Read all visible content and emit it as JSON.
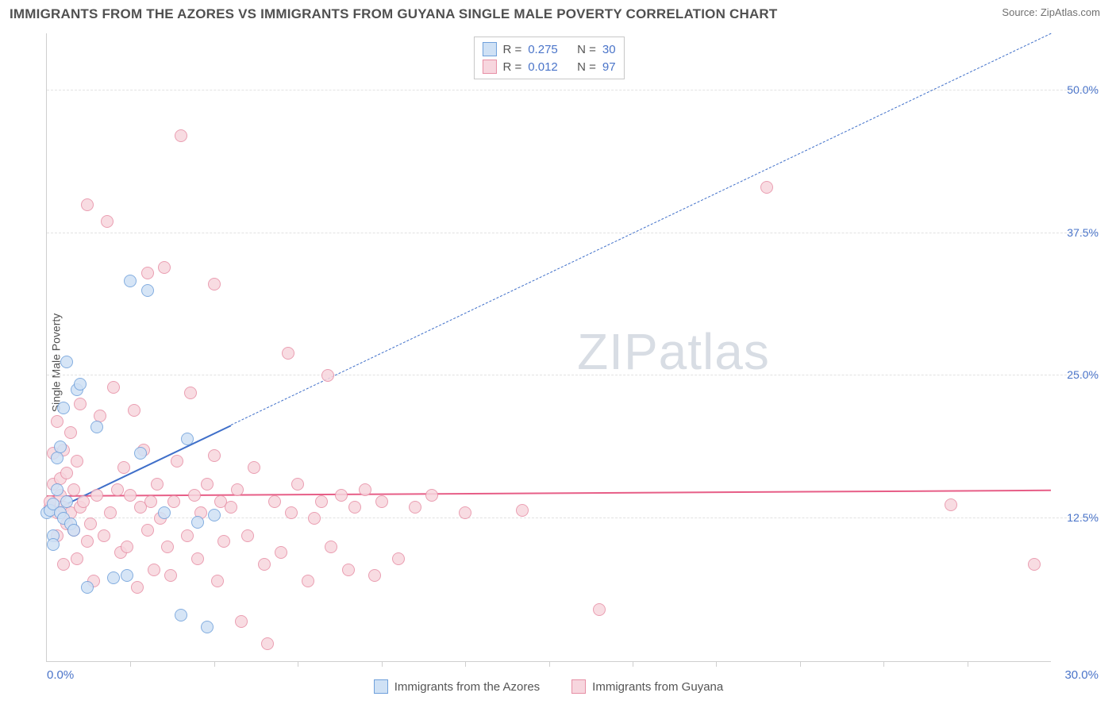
{
  "header": {
    "title": "IMMIGRANTS FROM THE AZORES VS IMMIGRANTS FROM GUYANA SINGLE MALE POVERTY CORRELATION CHART",
    "source_label": "Source:",
    "source_value": "ZipAtlas.com"
  },
  "axes": {
    "ylabel": "Single Male Poverty",
    "xmin_label": "0.0%",
    "xmax_label": "30.0%",
    "xlim": [
      0,
      30
    ],
    "ylim": [
      0,
      55
    ],
    "yticks": [
      {
        "v": 12.5,
        "label": "12.5%"
      },
      {
        "v": 25.0,
        "label": "25.0%"
      },
      {
        "v": 37.5,
        "label": "37.5%"
      },
      {
        "v": 50.0,
        "label": "50.0%"
      }
    ],
    "xticks_minor": [
      2.5,
      5,
      7.5,
      10,
      12.5,
      15,
      17.5,
      20,
      22.5,
      25,
      27.5
    ],
    "grid_color": "#e2e2e2",
    "axis_color": "#cfcfcf",
    "tick_label_color": "#4a74c9"
  },
  "series": {
    "azores": {
      "label": "Immigrants from the Azores",
      "marker_fill": "#cfe1f5",
      "marker_stroke": "#6fa0db",
      "line_color": "#3f6fc9",
      "R": "0.275",
      "N": "30",
      "points": [
        [
          0.0,
          13.0
        ],
        [
          0.1,
          13.2
        ],
        [
          0.2,
          13.8
        ],
        [
          0.2,
          11.0
        ],
        [
          0.2,
          10.2
        ],
        [
          0.3,
          17.8
        ],
        [
          0.3,
          15.0
        ],
        [
          0.4,
          13.0
        ],
        [
          0.4,
          18.8
        ],
        [
          0.5,
          12.5
        ],
        [
          0.5,
          22.2
        ],
        [
          0.6,
          14.0
        ],
        [
          0.6,
          26.2
        ],
        [
          0.7,
          12.0
        ],
        [
          0.8,
          11.5
        ],
        [
          0.9,
          23.8
        ],
        [
          1.0,
          24.3
        ],
        [
          1.2,
          6.5
        ],
        [
          1.5,
          20.5
        ],
        [
          2.0,
          7.3
        ],
        [
          2.4,
          7.5
        ],
        [
          2.5,
          33.3
        ],
        [
          2.8,
          18.2
        ],
        [
          3.0,
          32.5
        ],
        [
          3.5,
          13.0
        ],
        [
          4.0,
          4.0
        ],
        [
          4.2,
          19.5
        ],
        [
          4.5,
          12.2
        ],
        [
          4.8,
          3.0
        ],
        [
          5.0,
          12.8
        ]
      ],
      "trend": {
        "x1": 0.0,
        "y1": 13.0,
        "x2": 30.0,
        "y2": 55.0
      },
      "trend_solid_until_x": 5.5
    },
    "guyana": {
      "label": "Immigrants from Guyana",
      "marker_fill": "#f7d6de",
      "marker_stroke": "#e78fa5",
      "line_color": "#e75e87",
      "R": "0.012",
      "N": "97",
      "points": [
        [
          0.1,
          13.5
        ],
        [
          0.1,
          14.0
        ],
        [
          0.2,
          15.5
        ],
        [
          0.2,
          18.2
        ],
        [
          0.3,
          13.0
        ],
        [
          0.3,
          21.0
        ],
        [
          0.3,
          11.0
        ],
        [
          0.4,
          14.5
        ],
        [
          0.4,
          16.0
        ],
        [
          0.5,
          13.5
        ],
        [
          0.5,
          18.5
        ],
        [
          0.5,
          8.5
        ],
        [
          0.6,
          12.0
        ],
        [
          0.6,
          16.5
        ],
        [
          0.7,
          20.0
        ],
        [
          0.7,
          13.0
        ],
        [
          0.8,
          11.5
        ],
        [
          0.8,
          15.0
        ],
        [
          0.9,
          9.0
        ],
        [
          0.9,
          17.5
        ],
        [
          1.0,
          13.5
        ],
        [
          1.0,
          22.5
        ],
        [
          1.1,
          14.0
        ],
        [
          1.2,
          10.5
        ],
        [
          1.2,
          40.0
        ],
        [
          1.3,
          12.0
        ],
        [
          1.4,
          7.0
        ],
        [
          1.5,
          14.5
        ],
        [
          1.6,
          21.5
        ],
        [
          1.7,
          11.0
        ],
        [
          1.8,
          38.5
        ],
        [
          1.9,
          13.0
        ],
        [
          2.0,
          24.0
        ],
        [
          2.1,
          15.0
        ],
        [
          2.2,
          9.5
        ],
        [
          2.3,
          17.0
        ],
        [
          2.4,
          10.0
        ],
        [
          2.5,
          14.5
        ],
        [
          2.6,
          22.0
        ],
        [
          2.7,
          6.5
        ],
        [
          2.8,
          13.5
        ],
        [
          2.9,
          18.5
        ],
        [
          3.0,
          11.5
        ],
        [
          3.0,
          34.0
        ],
        [
          3.1,
          14.0
        ],
        [
          3.2,
          8.0
        ],
        [
          3.3,
          15.5
        ],
        [
          3.4,
          12.5
        ],
        [
          3.5,
          34.5
        ],
        [
          3.6,
          10.0
        ],
        [
          3.7,
          7.5
        ],
        [
          3.8,
          14.0
        ],
        [
          3.9,
          17.5
        ],
        [
          4.0,
          46.0
        ],
        [
          4.2,
          11.0
        ],
        [
          4.3,
          23.5
        ],
        [
          4.4,
          14.5
        ],
        [
          4.5,
          9.0
        ],
        [
          4.6,
          13.0
        ],
        [
          4.8,
          15.5
        ],
        [
          5.0,
          18.0
        ],
        [
          5.0,
          33.0
        ],
        [
          5.1,
          7.0
        ],
        [
          5.2,
          14.0
        ],
        [
          5.3,
          10.5
        ],
        [
          5.5,
          13.5
        ],
        [
          5.7,
          15.0
        ],
        [
          5.8,
          3.5
        ],
        [
          6.0,
          11.0
        ],
        [
          6.2,
          17.0
        ],
        [
          6.5,
          8.5
        ],
        [
          6.6,
          1.5
        ],
        [
          6.8,
          14.0
        ],
        [
          7.0,
          9.5
        ],
        [
          7.2,
          27.0
        ],
        [
          7.3,
          13.0
        ],
        [
          7.5,
          15.5
        ],
        [
          7.8,
          7.0
        ],
        [
          8.0,
          12.5
        ],
        [
          8.2,
          14.0
        ],
        [
          8.4,
          25.0
        ],
        [
          8.5,
          10.0
        ],
        [
          8.8,
          14.5
        ],
        [
          9.0,
          8.0
        ],
        [
          9.2,
          13.5
        ],
        [
          9.5,
          15.0
        ],
        [
          9.8,
          7.5
        ],
        [
          10.0,
          14.0
        ],
        [
          10.5,
          9.0
        ],
        [
          11.0,
          13.5
        ],
        [
          11.5,
          14.5
        ],
        [
          12.5,
          13.0
        ],
        [
          14.2,
          13.2
        ],
        [
          16.5,
          4.5
        ],
        [
          21.5,
          41.5
        ],
        [
          27.0,
          13.7
        ],
        [
          29.5,
          8.5
        ]
      ],
      "trend": {
        "x1": 0.0,
        "y1": 14.5,
        "x2": 30.0,
        "y2": 15.0
      }
    }
  },
  "legend_top": {
    "R_label": "R =",
    "N_label": "N ="
  },
  "watermark": "ZIPatlas",
  "colors": {
    "background": "#ffffff",
    "title_color": "#505050"
  }
}
